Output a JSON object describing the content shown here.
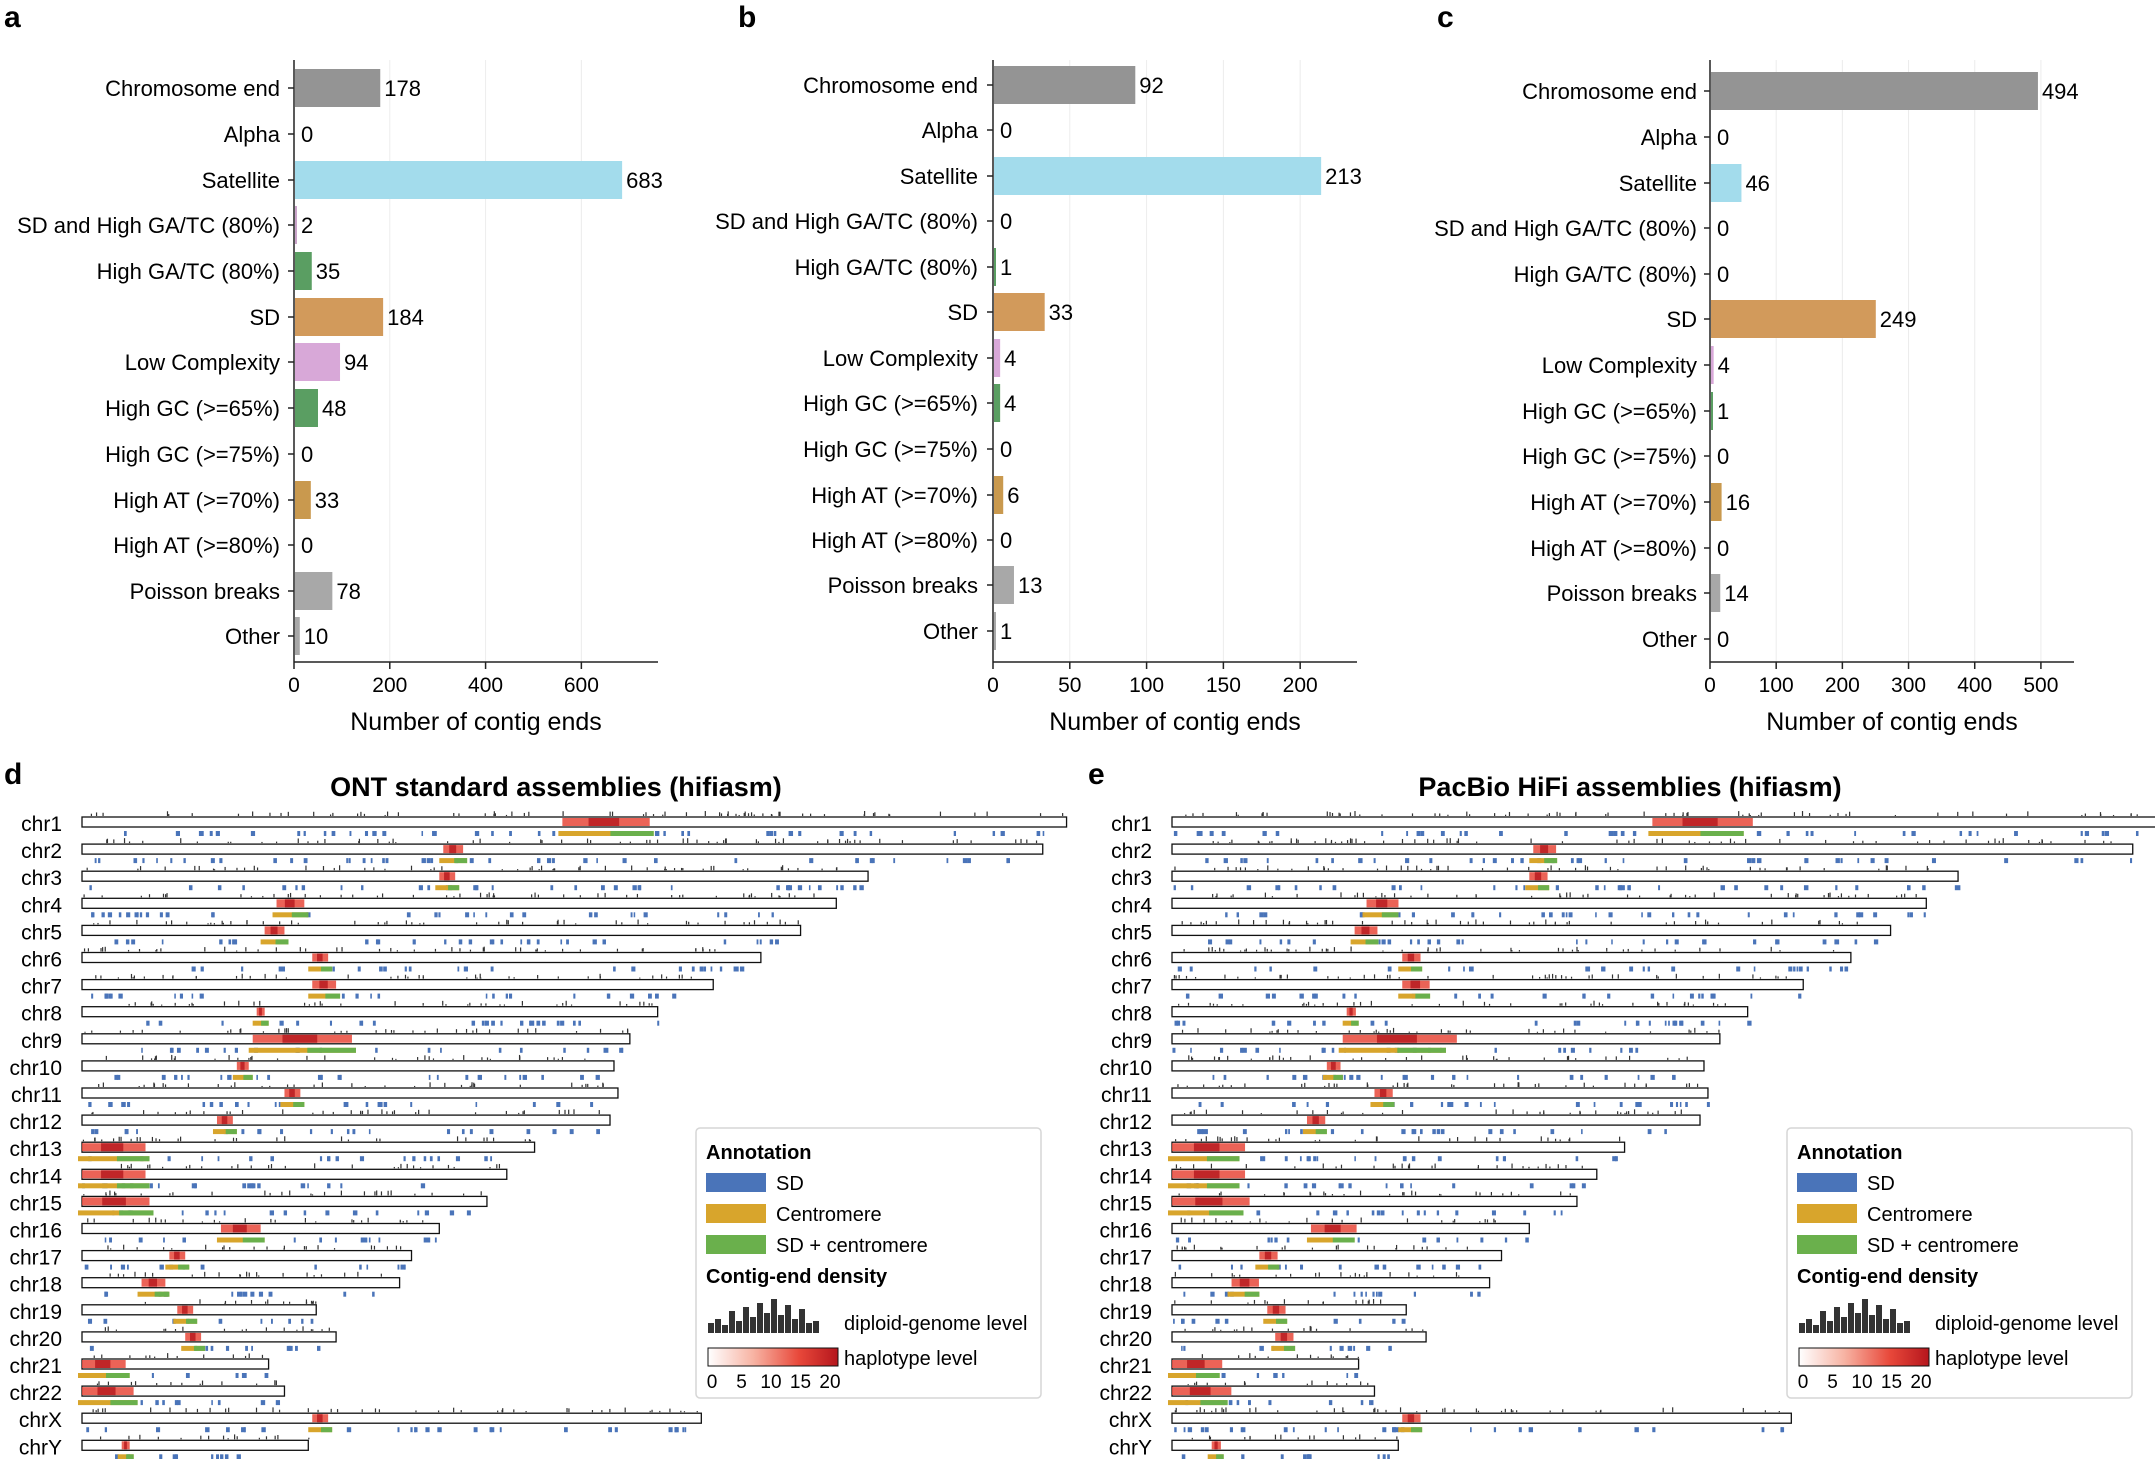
{
  "panels": [
    {
      "letter": "a",
      "xlabel": "Number of contig ends",
      "chart_data": {
        "type": "bar",
        "orientation": "horizontal",
        "categories": [
          "Chromosome end",
          "Alpha",
          "Satellite",
          "SD and High GA/TC (80%)",
          "High GA/TC (80%)",
          "SD",
          "Low Complexity",
          "High GC (>=65%)",
          "High GC (>=75%)",
          "High AT (>=70%)",
          "High AT (>=80%)",
          "Poisson breaks",
          "Other"
        ],
        "values": [
          178,
          0,
          683,
          2,
          35,
          184,
          94,
          48,
          0,
          33,
          0,
          78,
          10
        ],
        "value_labels": [
          "178",
          "0",
          "683",
          "2",
          "35",
          "184",
          "94",
          "48",
          "0",
          "33",
          "0",
          "78",
          "10"
        ],
        "xticks": [
          0,
          200,
          400,
          600
        ],
        "xtick_labels": [
          "0",
          "200",
          "400",
          "600"
        ],
        "xlim": [
          0,
          760
        ]
      }
    },
    {
      "letter": "b",
      "xlabel": "Number of contig ends",
      "chart_data": {
        "type": "bar",
        "orientation": "horizontal",
        "categories": [
          "Chromosome end",
          "Alpha",
          "Satellite",
          "SD and High GA/TC (80%)",
          "High GA/TC (80%)",
          "SD",
          "Low Complexity",
          "High GC (>=65%)",
          "High GC (>=75%)",
          "High AT (>=70%)",
          "High AT (>=80%)",
          "Poisson breaks",
          "Other"
        ],
        "values": [
          92,
          0,
          213,
          0,
          1,
          33,
          4,
          4,
          0,
          6,
          0,
          13,
          1
        ],
        "value_labels": [
          "92",
          "0",
          "213",
          "0",
          "1",
          "33",
          "4",
          "4",
          "0",
          "6",
          "0",
          "13",
          "1"
        ],
        "xticks": [
          0,
          50,
          100,
          150,
          200
        ],
        "xtick_labels": [
          "0",
          "50",
          "100",
          "150",
          "200"
        ],
        "xlim": [
          0,
          237
        ]
      }
    },
    {
      "letter": "c",
      "xlabel": "Number of contig ends",
      "chart_data": {
        "type": "bar",
        "orientation": "horizontal",
        "categories": [
          "Chromosome end",
          "Alpha",
          "Satellite",
          "SD and High GA/TC (80%)",
          "High GA/TC (80%)",
          "SD",
          "Low Complexity",
          "High GC (>=65%)",
          "High GC (>=75%)",
          "High AT (>=70%)",
          "High AT (>=80%)",
          "Poisson breaks",
          "Other"
        ],
        "values": [
          494,
          0,
          46,
          0,
          0,
          249,
          4,
          1,
          0,
          16,
          0,
          14,
          0
        ],
        "value_labels": [
          "494",
          "0",
          "46",
          "0",
          "0",
          "249",
          "4",
          "1",
          "0",
          "16",
          "0",
          "14",
          "0"
        ],
        "xticks": [
          0,
          100,
          200,
          300,
          400,
          500
        ],
        "xtick_labels": [
          "0",
          "100",
          "200",
          "300",
          "400",
          "500"
        ],
        "xlim": [
          0,
          550
        ]
      }
    }
  ],
  "bar_colors": [
    "#949494",
    "#bdbdbd",
    "#a3dcec",
    "#c9a3c9",
    "#5a9e62",
    "#d29a5b",
    "#d8a8d8",
    "#5a9e62",
    "#5a9e62",
    "#c9994e",
    "#c9994e",
    "#a8a8a8",
    "#a8a8a8"
  ],
  "ideo_panels": [
    {
      "letter": "d",
      "title": "ONT standard assemblies (hifiasm)",
      "density_scale": "ont"
    },
    {
      "letter": "e",
      "title": "PacBio HiFi assemblies (hifiasm)",
      "density_scale": "hifi"
    }
  ],
  "chromosomes": {
    "names": [
      "chr1",
      "chr2",
      "chr3",
      "chr4",
      "chr5",
      "chr6",
      "chr7",
      "chr8",
      "chr9",
      "chr10",
      "chr11",
      "chr12",
      "chr13",
      "chr14",
      "chr15",
      "chr16",
      "chr17",
      "chr18",
      "chr19",
      "chr20",
      "chr21",
      "chr22",
      "chrX",
      "chrY"
    ],
    "length_mb": [
      248,
      242,
      198,
      190,
      181,
      171,
      159,
      145,
      138,
      134,
      135,
      133,
      114,
      107,
      102,
      90,
      83,
      80,
      59,
      64,
      47,
      51,
      156,
      57
    ],
    "centromere_mb": [
      [
        121,
        143
      ],
      [
        91,
        96
      ],
      [
        90,
        94
      ],
      [
        49,
        56
      ],
      [
        46,
        51
      ],
      [
        58,
        62
      ],
      [
        58,
        64
      ],
      [
        44,
        46
      ],
      [
        43,
        68
      ],
      [
        39,
        42
      ],
      [
        51,
        55
      ],
      [
        34,
        38
      ],
      [
        0,
        16
      ],
      [
        0,
        16
      ],
      [
        0,
        17
      ],
      [
        35,
        45
      ],
      [
        22,
        26
      ],
      [
        15,
        21
      ],
      [
        24,
        28
      ],
      [
        26,
        30
      ],
      [
        0,
        11
      ],
      [
        0,
        13
      ],
      [
        58,
        62
      ],
      [
        10,
        12
      ]
    ]
  },
  "legend": {
    "annotation_title": "Annotation",
    "items": [
      {
        "label": "SD",
        "color": "#4a74b9"
      },
      {
        "label": "Centromere",
        "color": "#d8a52c"
      },
      {
        "label": "SD + centromere",
        "color": "#6ab04c"
      }
    ],
    "density_title": "Contig-end density",
    "diploid_label": "diploid-genome level",
    "haplotype_label": "haplotype level",
    "scale_ticks": [
      "0",
      "5",
      "10",
      "15",
      "20"
    ]
  }
}
